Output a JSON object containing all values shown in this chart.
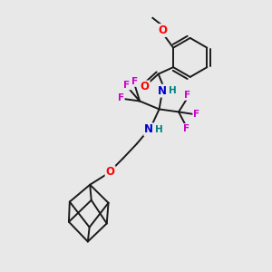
{
  "bg_color": "#e8e8e8",
  "bond_color": "#1a1a1a",
  "atom_colors": {
    "O": "#ff0000",
    "N": "#0000cc",
    "H": "#008080",
    "F": "#cc00cc",
    "C": "#1a1a1a"
  },
  "figsize": [
    3.0,
    3.0
  ],
  "dpi": 100
}
